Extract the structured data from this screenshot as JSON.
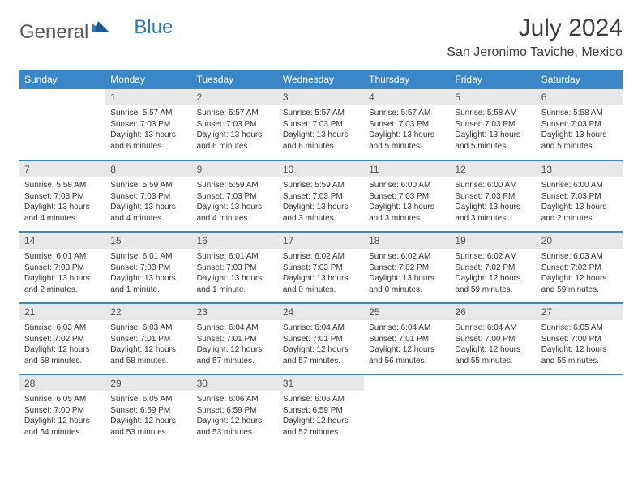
{
  "logo": {
    "text1": "General",
    "text2": "Blue"
  },
  "title": "July 2024",
  "location": "San Jeronimo Taviche, Mexico",
  "colors": {
    "header_bg": "#3a87c8",
    "header_text": "#ffffff",
    "daynum_bg": "#e8e8e8",
    "border": "#3a87c8",
    "logo_gray": "#5a5a5a",
    "logo_blue": "#2f79bd"
  },
  "weekdays": [
    "Sunday",
    "Monday",
    "Tuesday",
    "Wednesday",
    "Thursday",
    "Friday",
    "Saturday"
  ],
  "first_weekday_index": 1,
  "days_in_month": 31,
  "days": {
    "1": {
      "sunrise": "5:57 AM",
      "sunset": "7:03 PM",
      "daylight": "13 hours and 6 minutes."
    },
    "2": {
      "sunrise": "5:57 AM",
      "sunset": "7:03 PM",
      "daylight": "13 hours and 6 minutes."
    },
    "3": {
      "sunrise": "5:57 AM",
      "sunset": "7:03 PM",
      "daylight": "13 hours and 6 minutes."
    },
    "4": {
      "sunrise": "5:57 AM",
      "sunset": "7:03 PM",
      "daylight": "13 hours and 5 minutes."
    },
    "5": {
      "sunrise": "5:58 AM",
      "sunset": "7:03 PM",
      "daylight": "13 hours and 5 minutes."
    },
    "6": {
      "sunrise": "5:58 AM",
      "sunset": "7:03 PM",
      "daylight": "13 hours and 5 minutes."
    },
    "7": {
      "sunrise": "5:58 AM",
      "sunset": "7:03 PM",
      "daylight": "13 hours and 4 minutes."
    },
    "8": {
      "sunrise": "5:59 AM",
      "sunset": "7:03 PM",
      "daylight": "13 hours and 4 minutes."
    },
    "9": {
      "sunrise": "5:59 AM",
      "sunset": "7:03 PM",
      "daylight": "13 hours and 4 minutes."
    },
    "10": {
      "sunrise": "5:59 AM",
      "sunset": "7:03 PM",
      "daylight": "13 hours and 3 minutes."
    },
    "11": {
      "sunrise": "6:00 AM",
      "sunset": "7:03 PM",
      "daylight": "13 hours and 3 minutes."
    },
    "12": {
      "sunrise": "6:00 AM",
      "sunset": "7:03 PM",
      "daylight": "13 hours and 3 minutes."
    },
    "13": {
      "sunrise": "6:00 AM",
      "sunset": "7:03 PM",
      "daylight": "13 hours and 2 minutes."
    },
    "14": {
      "sunrise": "6:01 AM",
      "sunset": "7:03 PM",
      "daylight": "13 hours and 2 minutes."
    },
    "15": {
      "sunrise": "6:01 AM",
      "sunset": "7:03 PM",
      "daylight": "13 hours and 1 minute."
    },
    "16": {
      "sunrise": "6:01 AM",
      "sunset": "7:03 PM",
      "daylight": "13 hours and 1 minute."
    },
    "17": {
      "sunrise": "6:02 AM",
      "sunset": "7:03 PM",
      "daylight": "13 hours and 0 minutes."
    },
    "18": {
      "sunrise": "6:02 AM",
      "sunset": "7:02 PM",
      "daylight": "13 hours and 0 minutes."
    },
    "19": {
      "sunrise": "6:02 AM",
      "sunset": "7:02 PM",
      "daylight": "12 hours and 59 minutes."
    },
    "20": {
      "sunrise": "6:03 AM",
      "sunset": "7:02 PM",
      "daylight": "12 hours and 59 minutes."
    },
    "21": {
      "sunrise": "6:03 AM",
      "sunset": "7:02 PM",
      "daylight": "12 hours and 58 minutes."
    },
    "22": {
      "sunrise": "6:03 AM",
      "sunset": "7:01 PM",
      "daylight": "12 hours and 58 minutes."
    },
    "23": {
      "sunrise": "6:04 AM",
      "sunset": "7:01 PM",
      "daylight": "12 hours and 57 minutes."
    },
    "24": {
      "sunrise": "6:04 AM",
      "sunset": "7:01 PM",
      "daylight": "12 hours and 57 minutes."
    },
    "25": {
      "sunrise": "6:04 AM",
      "sunset": "7:01 PM",
      "daylight": "12 hours and 56 minutes."
    },
    "26": {
      "sunrise": "6:04 AM",
      "sunset": "7:00 PM",
      "daylight": "12 hours and 55 minutes."
    },
    "27": {
      "sunrise": "6:05 AM",
      "sunset": "7:00 PM",
      "daylight": "12 hours and 55 minutes."
    },
    "28": {
      "sunrise": "6:05 AM",
      "sunset": "7:00 PM",
      "daylight": "12 hours and 54 minutes."
    },
    "29": {
      "sunrise": "6:05 AM",
      "sunset": "6:59 PM",
      "daylight": "12 hours and 53 minutes."
    },
    "30": {
      "sunrise": "6:06 AM",
      "sunset": "6:59 PM",
      "daylight": "12 hours and 53 minutes."
    },
    "31": {
      "sunrise": "6:06 AM",
      "sunset": "6:59 PM",
      "daylight": "12 hours and 52 minutes."
    }
  },
  "labels": {
    "sunrise": "Sunrise: ",
    "sunset": "Sunset: ",
    "daylight": "Daylight: "
  }
}
